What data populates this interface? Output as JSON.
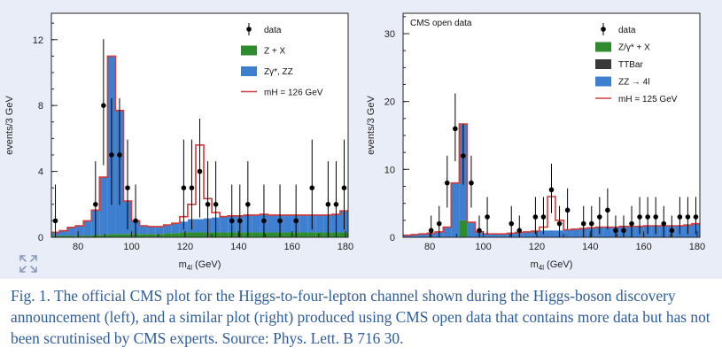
{
  "caption": "Fig. 1. The official CMS plot for the Higgs-to-four-lepton channel shown during the Higgs-boson discovery announcement (left), and a similar plot (right) produced using CMS open data that contains more data but has not been scrutinised by CMS experts. Source: Phys. Lett. B 716 30.",
  "colors": {
    "zx": "#2e8b2e",
    "zz": "#3f7fd0",
    "ttbar": "#3a3a3a",
    "signal": "#d23b3b",
    "data": "#000000",
    "background": "#e9edf8"
  },
  "icons": {
    "expand": "expand-arrows-icon"
  },
  "chart_data": [
    {
      "type": "bar",
      "title": "",
      "xlabel": "m4l (GeV)",
      "ylabel": "events/3 GeV",
      "xlim": [
        70,
        181
      ],
      "ylim": [
        0,
        13.6
      ],
      "xticks": [
        80,
        100,
        120,
        140,
        160,
        180
      ],
      "yticks": [
        0,
        4,
        8,
        12
      ],
      "bin_width": 3,
      "legend_position": "top-right",
      "legend": [
        "data",
        "Z + X",
        "Zγ*, ZZ",
        "mH = 126 GeV"
      ],
      "bin_low_edges": [
        70,
        73,
        76,
        79,
        82,
        85,
        88,
        91,
        94,
        97,
        100,
        103,
        106,
        109,
        112,
        115,
        118,
        121,
        124,
        127,
        130,
        133,
        136,
        139,
        142,
        145,
        148,
        151,
        154,
        157,
        160,
        163,
        166,
        169,
        172,
        175,
        178
      ],
      "series": [
        {
          "name": "Z + X",
          "values": [
            0.1,
            0.1,
            0.1,
            0.1,
            0.1,
            0.15,
            0.15,
            0.2,
            0.2,
            0.2,
            0.2,
            0.2,
            0.2,
            0.2,
            0.25,
            0.25,
            0.3,
            0.3,
            0.3,
            0.3,
            0.3,
            0.3,
            0.3,
            0.3,
            0.3,
            0.3,
            0.3,
            0.3,
            0.3,
            0.3,
            0.3,
            0.3,
            0.3,
            0.3,
            0.3,
            0.3,
            0.3
          ]
        },
        {
          "name": "Zγ*, ZZ",
          "values": [
            0.2,
            0.3,
            0.5,
            0.6,
            0.9,
            1.5,
            3.5,
            10.8,
            7.5,
            2.0,
            0.8,
            0.5,
            0.45,
            0.45,
            0.5,
            0.6,
            0.65,
            0.8,
            0.8,
            0.85,
            0.9,
            0.95,
            1.0,
            1.0,
            1.05,
            1.05,
            1.1,
            1.05,
            1.05,
            1.05,
            1.05,
            1.05,
            1.05,
            1.05,
            1.05,
            1.1,
            1.3
          ]
        },
        {
          "name": "mH = 126 GeV",
          "values": [
            0,
            0,
            0,
            0,
            0,
            0,
            0,
            0,
            0,
            0,
            0,
            0,
            0,
            0,
            0,
            0,
            0.3,
            0.9,
            4.5,
            1.2,
            0.3,
            0,
            0,
            0,
            0,
            0,
            0,
            0,
            0,
            0,
            0,
            0,
            0,
            0,
            0,
            0,
            0
          ]
        }
      ],
      "data_points": {
        "x": [
          71.5,
          86.5,
          89.5,
          92.5,
          95.5,
          98.5,
          101.5,
          119.5,
          122.5,
          125.5,
          128.5,
          131.5,
          137.5,
          140.5,
          143.5,
          149.5,
          155.5,
          161.5,
          167.5,
          173.5,
          176.5,
          179.5
        ],
        "y": [
          1,
          2,
          8,
          5,
          5,
          3,
          1,
          3,
          3,
          4,
          2,
          2,
          1,
          1,
          2,
          1,
          1,
          1,
          3,
          2,
          2,
          3
        ]
      }
    },
    {
      "type": "bar",
      "title": "CMS open data",
      "xlabel": "m4l (GeV)",
      "ylabel": "events/3 GeV",
      "xlim": [
        70,
        181
      ],
      "ylim": [
        0,
        33
      ],
      "xticks": [
        80,
        100,
        120,
        140,
        160,
        180
      ],
      "yticks": [
        0,
        10,
        20,
        30
      ],
      "bin_width": 3,
      "legend_position": "top-right",
      "legend": [
        "data",
        "Z/γ* + X",
        "TTBar",
        "ZZ → 4l",
        "mH = 125 GeV"
      ],
      "bin_low_edges": [
        70,
        73,
        76,
        79,
        82,
        85,
        88,
        91,
        94,
        97,
        100,
        103,
        106,
        109,
        112,
        115,
        118,
        121,
        124,
        127,
        130,
        133,
        136,
        139,
        142,
        145,
        148,
        151,
        154,
        157,
        160,
        163,
        166,
        169,
        172,
        175,
        178
      ],
      "series": [
        {
          "name": "Z/γ* + X",
          "values": [
            0,
            0,
            0,
            0,
            0,
            0,
            0,
            2.5,
            0,
            0,
            0,
            0,
            0,
            0,
            0,
            0,
            0,
            0,
            0,
            0,
            0,
            0,
            0,
            0,
            0,
            0,
            0,
            0,
            0,
            0,
            0,
            0,
            0,
            0,
            0,
            0,
            0
          ]
        },
        {
          "name": "TTBar",
          "values": [
            0,
            0,
            0,
            0,
            0,
            0,
            0,
            0,
            0,
            0,
            0,
            0,
            0,
            0,
            0,
            0,
            0,
            0,
            0,
            0,
            0,
            0,
            0,
            0,
            0,
            0,
            0,
            0,
            0,
            0,
            0,
            0,
            0,
            0,
            0,
            0,
            0
          ]
        },
        {
          "name": "ZZ → 4l",
          "values": [
            0.3,
            0.4,
            0.5,
            0.6,
            0.8,
            1.5,
            8.0,
            14.2,
            2.2,
            0.8,
            0.5,
            0.5,
            0.5,
            0.6,
            0.7,
            0.8,
            0.9,
            1.0,
            1.0,
            1.0,
            1.1,
            1.2,
            1.3,
            1.4,
            1.5,
            1.5,
            1.5,
            1.6,
            1.6,
            1.6,
            1.7,
            1.7,
            1.7,
            1.7,
            1.7,
            1.8,
            2.0
          ]
        },
        {
          "name": "mH = 125 GeV",
          "values": [
            0,
            0,
            0,
            0,
            0,
            0,
            0,
            0,
            0,
            0,
            0,
            0,
            0,
            0,
            0,
            0,
            0,
            0.5,
            5.0,
            1.5,
            0,
            0,
            0,
            0,
            0,
            0,
            0,
            0,
            0,
            0,
            0,
            0,
            0,
            0,
            0,
            0,
            0
          ]
        }
      ],
      "data_points": {
        "x": [
          80.5,
          83.5,
          86.5,
          89.5,
          92.5,
          95.5,
          98.5,
          101.5,
          110.5,
          113.5,
          119.5,
          122.5,
          125.5,
          128.5,
          131.5,
          137.5,
          140.5,
          143.5,
          146.5,
          149.5,
          152.5,
          155.5,
          158.5,
          161.5,
          164.5,
          167.5,
          170.5,
          173.5,
          176.5,
          179.5
        ],
        "y": [
          1,
          2,
          8,
          16,
          12,
          8,
          1,
          3,
          2,
          1,
          3,
          3,
          7,
          2,
          4,
          2,
          2,
          3,
          4,
          1,
          1,
          2,
          3,
          3,
          3,
          2,
          1,
          3,
          3,
          3
        ]
      }
    }
  ]
}
